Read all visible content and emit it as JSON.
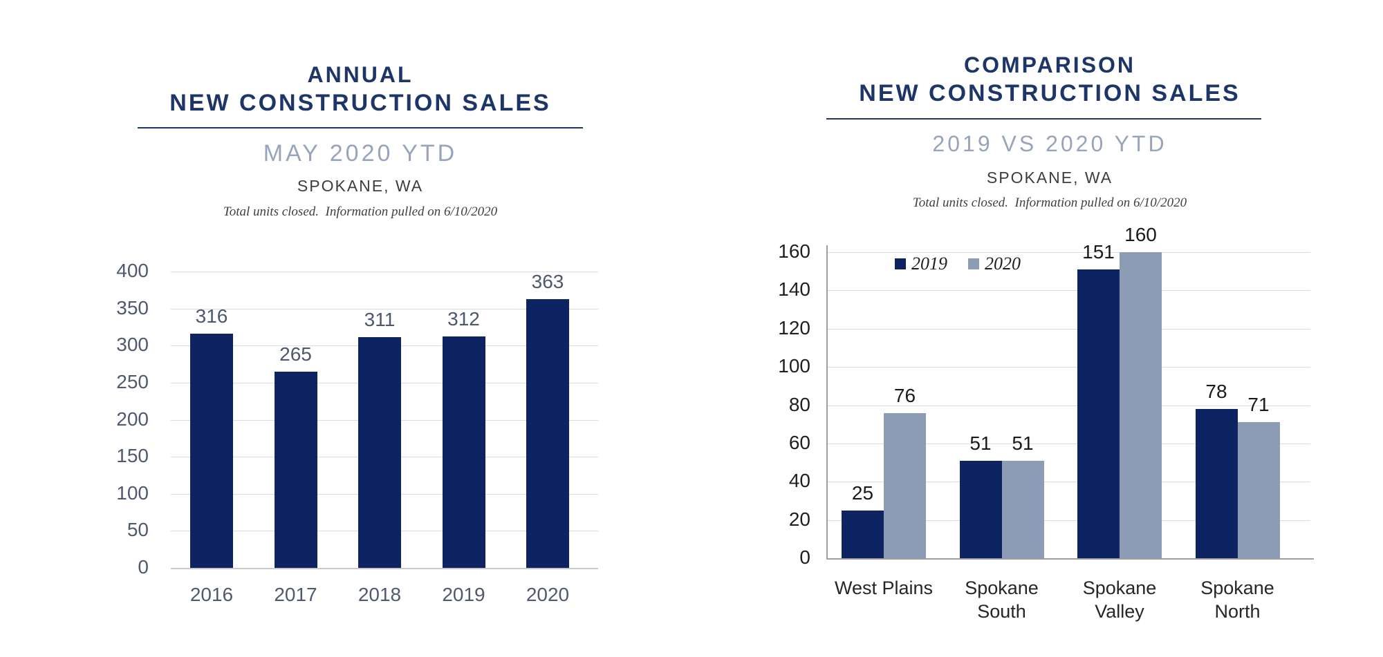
{
  "page": {
    "background": "#ffffff"
  },
  "headers": [
    {
      "title_line1": "ANNUAL",
      "title_line2": "NEW CONSTRUCTION SALES",
      "subtitle": "MAY 2020 YTD",
      "location": "SPOKANE, WA",
      "note": "Total units closed.  Information pulled on 6/10/2020"
    },
    {
      "title_line1": "COMPARISON",
      "title_line2": "NEW CONSTRUCTION SALES",
      "subtitle": "2019 VS 2020 YTD",
      "location": "SPOKANE, WA",
      "note": "Total units closed.  Information pulled on 6/10/2020"
    }
  ],
  "chart_data": [
    {
      "type": "bar",
      "title": "ANNUAL NEW CONSTRUCTION SALES — MAY 2020 YTD — SPOKANE, WA",
      "categories": [
        "2016",
        "2017",
        "2018",
        "2019",
        "2020"
      ],
      "values": [
        316,
        265,
        311,
        312,
        363
      ],
      "value_labels": [
        "316",
        "265",
        "311",
        "312",
        "363"
      ],
      "xlabel": "",
      "ylabel": "",
      "ylim": [
        0,
        400
      ],
      "ytick_step": 50,
      "yticks": [
        400,
        350,
        300,
        250,
        200,
        150,
        100,
        50,
        0
      ],
      "grid": true,
      "legend": null,
      "bar_color": "#0e2361",
      "tick_label_color": "#4f5a70",
      "value_label_color": "#4c586f",
      "gridline_color": "#dcdcdc"
    },
    {
      "type": "bar",
      "title": "COMPARISON NEW CONSTRUCTION SALES — 2019 VS 2020 YTD — SPOKANE, WA",
      "categories": [
        "West Plains",
        "Spokane\nSouth",
        "Spokane\nValley",
        "Spokane\nNorth"
      ],
      "series": [
        {
          "name": "2019",
          "values": [
            25,
            51,
            151,
            78
          ],
          "color": "#0e2361"
        },
        {
          "name": "2020",
          "values": [
            76,
            51,
            160,
            71
          ],
          "color": "#8d9cb5"
        }
      ],
      "value_labels": [
        [
          "25",
          "51",
          "151",
          "78"
        ],
        [
          "76",
          "51",
          "160",
          "71"
        ]
      ],
      "xlabel": "",
      "ylabel": "",
      "ylim": [
        0,
        160
      ],
      "ytick_step": 20,
      "yticks": [
        160,
        140,
        120,
        100,
        80,
        60,
        40,
        20,
        0
      ],
      "grid": true,
      "legend_position": "top-left-inside",
      "tick_label_color": "#1f1f1f",
      "value_label_color": "#1a1a1a",
      "category_label_color": "#262626",
      "gridline_color": "#dcdcdc",
      "axis_line_color": "#9f9f9f"
    }
  ],
  "colors": {
    "navy": "#0e2361",
    "gray_blue": "#8d9cb5",
    "title_navy": "#1d3667",
    "subtitle_gray": "#98a4ba"
  }
}
